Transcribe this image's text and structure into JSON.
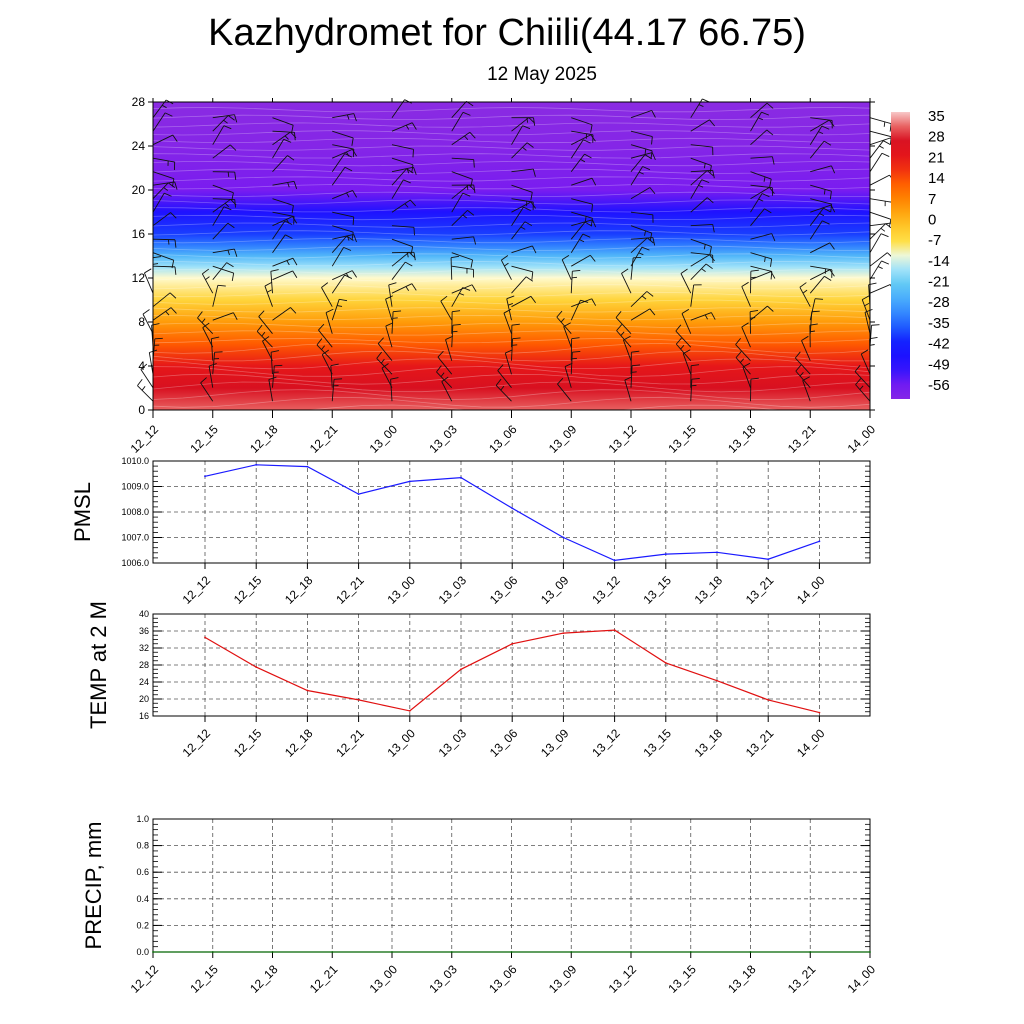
{
  "title": "Kazhydromet for Chiili(44.17 66.75)",
  "subtitle": "12 May 2025",
  "colors": {
    "pmsl_line": "#1a1aff",
    "temp_line": "#e01010",
    "precip_line": "#006400",
    "grid": "#555555"
  },
  "chart_data": [
    {
      "type": "heatmap",
      "name": "cross-section",
      "title": "",
      "xlabel": "",
      "ylabel": "",
      "x": [
        "12_12",
        "12_15",
        "12_18",
        "12_21",
        "13_00",
        "13_03",
        "13_06",
        "13_09",
        "13_12",
        "13_15",
        "13_18",
        "13_21",
        "14_00"
      ],
      "ylim": [
        0,
        28
      ],
      "yticks": [
        0,
        4,
        8,
        12,
        16,
        20,
        24,
        28
      ],
      "profile": [
        {
          "y": 0,
          "value": 33
        },
        {
          "y": 2,
          "value": 28
        },
        {
          "y": 4,
          "value": 22
        },
        {
          "y": 6,
          "value": 14
        },
        {
          "y": 8,
          "value": 5
        },
        {
          "y": 10,
          "value": -4
        },
        {
          "y": 12,
          "value": -10
        },
        {
          "y": 13,
          "value": -16
        },
        {
          "y": 14,
          "value": -24
        },
        {
          "y": 15,
          "value": -32
        },
        {
          "y": 16,
          "value": -38
        },
        {
          "y": 18,
          "value": -46
        },
        {
          "y": 20,
          "value": -56
        },
        {
          "y": 22,
          "value": -58
        },
        {
          "y": 24,
          "value": -60
        },
        {
          "y": 28,
          "value": -62
        }
      ],
      "colorbar": {
        "labels": [
          "35",
          "28",
          "21",
          "14",
          "7",
          "0",
          "-7",
          "-14",
          "-21",
          "-28",
          "-35",
          "-42",
          "-49",
          "-56"
        ],
        "range": [
          -60,
          38
        ]
      },
      "wind_barbs": "shown"
    },
    {
      "type": "line",
      "name": "pmsl",
      "ylabel": "PMSL",
      "x": [
        "12_12",
        "12_15",
        "12_18",
        "12_21",
        "13_00",
        "13_03",
        "13_06",
        "13_09",
        "13_12",
        "13_15",
        "13_18",
        "13_21",
        "14_00"
      ],
      "values": [
        1009.4,
        1009.85,
        1009.78,
        1008.7,
        1009.2,
        1009.35,
        1008.15,
        1007.0,
        1006.1,
        1006.35,
        1006.42,
        1006.15,
        1006.85
      ],
      "ylim": [
        1006.0,
        1010.0
      ],
      "yticks": [
        "1006.0",
        "1007.0",
        "1008.0",
        "1009.0",
        "1010.0"
      ],
      "grid": true
    },
    {
      "type": "line",
      "name": "temp-2m",
      "ylabel": "TEMP at 2 M",
      "x": [
        "12_12",
        "12_15",
        "12_18",
        "12_21",
        "13_00",
        "13_03",
        "13_06",
        "13_09",
        "13_12",
        "13_15",
        "13_18",
        "13_21",
        "14_00"
      ],
      "values": [
        34.5,
        27.5,
        22.0,
        19.8,
        17.2,
        27.0,
        33.0,
        35.5,
        36.2,
        28.5,
        24.3,
        19.8,
        16.8
      ],
      "ylim": [
        16,
        40
      ],
      "yticks": [
        "16",
        "20",
        "24",
        "28",
        "32",
        "36",
        "40"
      ],
      "grid": true
    },
    {
      "type": "line",
      "name": "precip",
      "ylabel": "PRECIP, mm",
      "x": [
        "12_12",
        "12_15",
        "12_18",
        "12_21",
        "13_00",
        "13_03",
        "13_06",
        "13_09",
        "13_12",
        "13_15",
        "13_18",
        "13_21",
        "14_00"
      ],
      "values": [
        0,
        0,
        0,
        0,
        0,
        0,
        0,
        0,
        0,
        0,
        0,
        0,
        0
      ],
      "ylim": [
        0.0,
        1.0
      ],
      "yticks": [
        "0.0",
        "0.2",
        "0.4",
        "0.6",
        "0.8",
        "1.0"
      ],
      "grid": true
    }
  ]
}
